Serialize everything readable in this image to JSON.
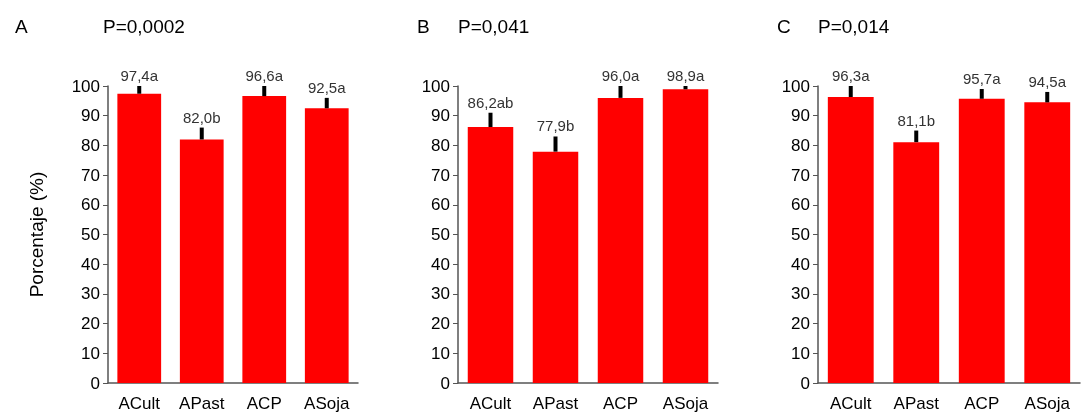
{
  "chart_data": [
    {
      "type": "bar",
      "title": "A",
      "subtitle": "P=0,0002",
      "ylabel": "Porcentaje (%)",
      "categories": [
        "ACult",
        "APast",
        "ACP",
        "ASoja"
      ],
      "values": [
        97.4,
        82.0,
        96.6,
        92.5
      ],
      "color": "#ff0000",
      "errors": [
        [
          97.4,
          100
        ],
        [
          82.0,
          86
        ],
        [
          96.6,
          100
        ],
        [
          92.5,
          96
        ]
      ],
      "value_labels": [
        "97,4a",
        "82,0b",
        "96,6a",
        "92,5a"
      ],
      "ylim": [
        0,
        100
      ],
      "yticks": [
        0,
        10,
        20,
        30,
        40,
        50,
        60,
        70,
        80,
        90,
        100
      ]
    },
    {
      "type": "bar",
      "title": "B",
      "subtitle": "P=0,041",
      "categories": [
        "ACult",
        "APast",
        "ACP",
        "ASoja"
      ],
      "values": [
        86.2,
        77.9,
        96.0,
        98.9
      ],
      "color": "#ff0000",
      "errors": [
        [
          86.2,
          91
        ],
        [
          77.9,
          83
        ],
        [
          96.0,
          100
        ],
        [
          98.9,
          100
        ]
      ],
      "value_labels": [
        "86,2ab",
        "77,9b",
        "96,0a",
        "98,9a"
      ],
      "ylim": [
        0,
        100
      ],
      "yticks": [
        0,
        10,
        20,
        30,
        40,
        50,
        60,
        70,
        80,
        90,
        100
      ]
    },
    {
      "type": "bar",
      "title": "C",
      "subtitle": "P=0,014",
      "categories": [
        "ACult",
        "APast",
        "ACP",
        "ASoja"
      ],
      "values": [
        96.3,
        81.1,
        95.7,
        94.5
      ],
      "color": "#ff0000",
      "errors": [
        [
          96.3,
          100
        ],
        [
          81.1,
          85
        ],
        [
          95.7,
          99
        ],
        [
          94.5,
          98
        ]
      ],
      "value_labels": [
        "96,3a",
        "81,1b",
        "95,7a",
        "94,5a"
      ],
      "ylim": [
        0,
        100
      ],
      "yticks": [
        0,
        10,
        20,
        30,
        40,
        50,
        60,
        70,
        80,
        90,
        100
      ]
    }
  ]
}
